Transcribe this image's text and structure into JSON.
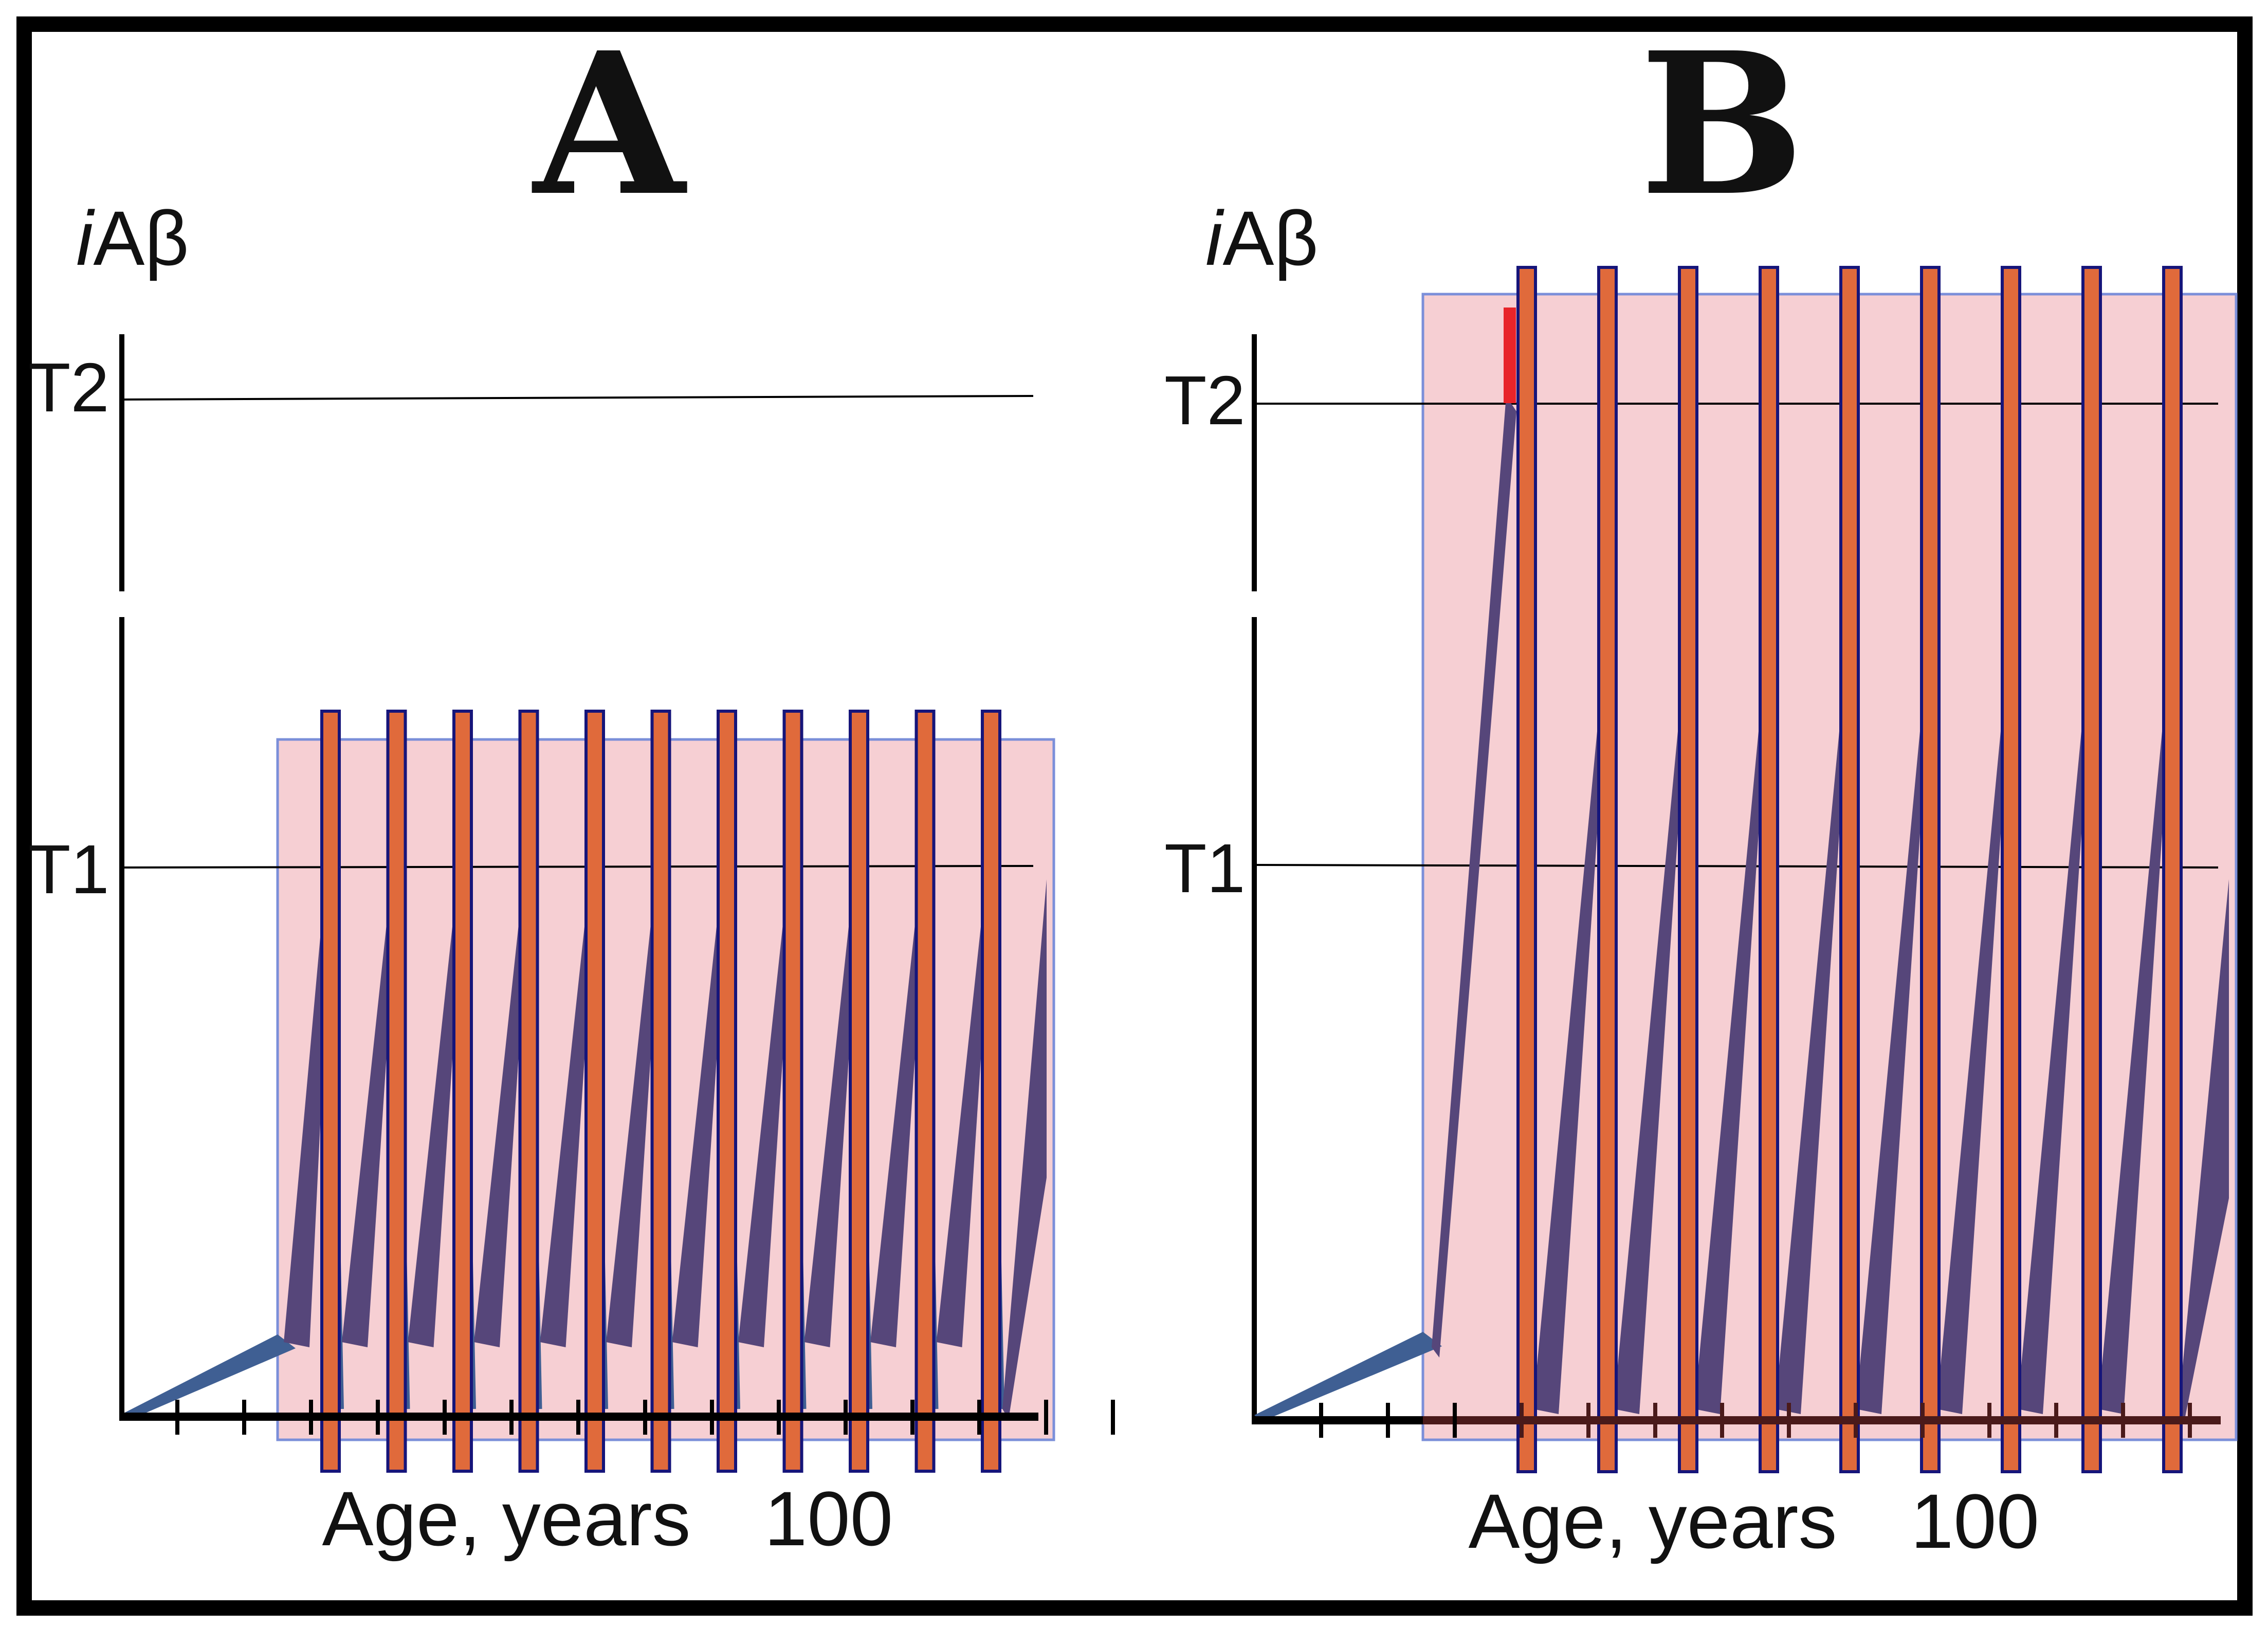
{
  "figure": {
    "panels": [
      {
        "letter": "A",
        "y_axis_label_italic": "i",
        "y_axis_label_rest": "Aβ",
        "threshold_high_label": "T2",
        "threshold_low_label": "T1",
        "x_axis_label": "Age, years",
        "x_tick_label": "100",
        "cycles": 11,
        "peak_relative_to_T1": 1.0
      },
      {
        "letter": "B",
        "y_axis_label_italic": "i",
        "y_axis_label_rest": "Aβ",
        "threshold_high_label": "T2",
        "threshold_low_label": "T1",
        "x_axis_label": "Age, years",
        "x_tick_label": "100",
        "cycles": 9,
        "peak_relative_to_T1": "crosses T2"
      }
    ],
    "colors": {
      "frame": "#000000",
      "shaded_region": "#f6cfd3",
      "shaded_region_border": "#7b8fd9",
      "bar_fill": "#e06a3b",
      "bar_border": "#16157a",
      "sawtooth": "#56467a",
      "initial_rise": "#3f5f93",
      "axis": "#000000",
      "threshold_line": "#000000",
      "t2_crossing_marker": "#e8242a"
    }
  }
}
